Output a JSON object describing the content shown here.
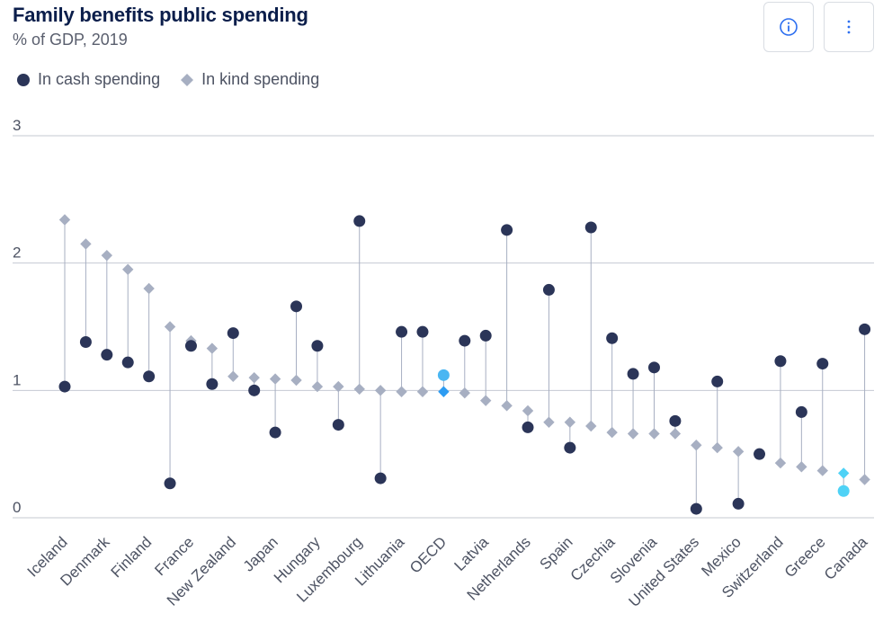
{
  "header": {
    "title": "Family benefits public spending",
    "subtitle": "% of GDP, 2019"
  },
  "toolbar": {
    "info_icon": "info-icon",
    "more_icon": "more-vertical-icon"
  },
  "colors": {
    "cash": "#2b3558",
    "kind": "#a7afc2",
    "highlight_cash": "#4ab6f2",
    "highlight_kind": "#2d9cf2",
    "canada_cash": "#4fd2f6",
    "canada_kind": "#4fd2f6",
    "stem": "#a7afc2",
    "grid": "#c5c9d2",
    "text": "#4d5363"
  },
  "chart_data": {
    "type": "dumbbell",
    "title": "Family benefits public spending",
    "subtitle": "% of GDP, 2019",
    "ylim": [
      0,
      3
    ],
    "yticks": [
      "0",
      "1",
      "2",
      "3"
    ],
    "grid": true,
    "legend_position": "top-left",
    "series": [
      {
        "name": "In cash spending",
        "marker": "circle"
      },
      {
        "name": "In kind spending",
        "marker": "diamond"
      }
    ],
    "categories": [
      "Iceland",
      "",
      "Denmark",
      "",
      "Finland",
      "",
      "France",
      "",
      "New Zealand",
      "",
      "Japan",
      "",
      "Hungary",
      "",
      "Luxembourg",
      "",
      "Lithuania",
      "",
      "OECD",
      "",
      "Latvia",
      "",
      "Netherlands",
      "",
      "Spain",
      "",
      "Czechia",
      "",
      "Slovenia",
      "",
      "United States",
      "",
      "Mexico",
      "",
      "Switzerland",
      "",
      "Greece",
      "",
      "Canada"
    ],
    "cash": [
      1.03,
      1.38,
      1.28,
      1.22,
      1.11,
      0.27,
      1.35,
      1.05,
      1.45,
      1.0,
      0.67,
      1.66,
      1.35,
      0.73,
      2.33,
      0.31,
      1.46,
      1.46,
      1.12,
      1.39,
      1.43,
      2.26,
      0.71,
      1.79,
      0.55,
      2.28,
      1.41,
      1.13,
      1.18,
      0.76,
      0.07,
      1.07,
      0.11,
      0.5,
      1.23,
      0.83,
      1.21,
      0.21,
      1.48
    ],
    "kind": [
      2.34,
      2.15,
      2.06,
      1.95,
      1.8,
      1.5,
      1.39,
      1.33,
      1.11,
      1.1,
      1.09,
      1.08,
      1.03,
      1.03,
      1.01,
      1.0,
      0.99,
      0.99,
      0.99,
      0.98,
      0.92,
      0.88,
      0.84,
      0.75,
      0.75,
      0.72,
      0.67,
      0.66,
      0.66,
      0.66,
      0.57,
      0.55,
      0.52,
      0.5,
      0.43,
      0.4,
      0.37,
      0.35,
      0.3
    ]
  }
}
